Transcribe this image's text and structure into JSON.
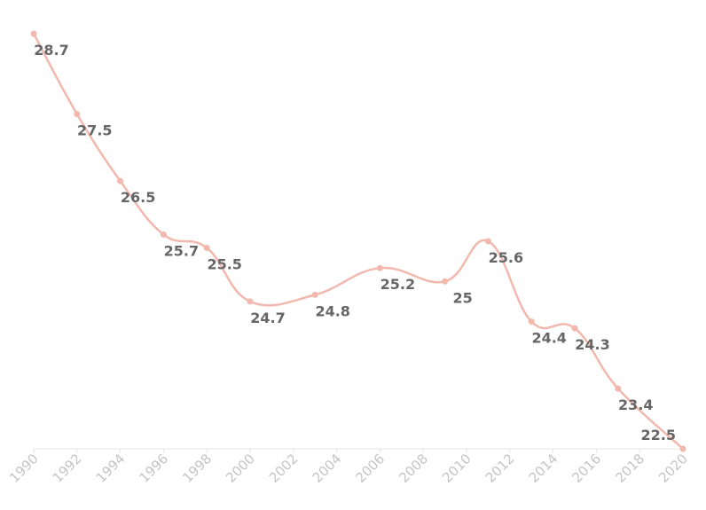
{
  "chart_data": {
    "type": "line",
    "title": "",
    "xlabel": "",
    "ylabel": "",
    "x_ticks": [
      "1990",
      "1992",
      "1994",
      "1996",
      "1998",
      "2000",
      "2002",
      "2004",
      "2006",
      "2008",
      "2010",
      "2012",
      "2014",
      "2016",
      "2018",
      "2020"
    ],
    "xlim": [
      1990,
      2020
    ],
    "ylim": [
      22.5,
      28.7
    ],
    "grid": false,
    "legend": "none",
    "line_color": "#f2b8ae",
    "series": [
      {
        "points": [
          {
            "x": 1990,
            "y": 28.7,
            "label": "28.7"
          },
          {
            "x": 1992,
            "y": 27.5,
            "label": "27.5"
          },
          {
            "x": 1994,
            "y": 26.5,
            "label": "26.5"
          },
          {
            "x": 1996,
            "y": 25.7,
            "label": "25.7"
          },
          {
            "x": 1998,
            "y": 25.5,
            "label": "25.5"
          },
          {
            "x": 2000,
            "y": 24.7,
            "label": "24.7"
          },
          {
            "x": 2003,
            "y": 24.8,
            "label": "24.8"
          },
          {
            "x": 2006,
            "y": 25.2,
            "label": "25.2"
          },
          {
            "x": 2009,
            "y": 25.0,
            "label": "25"
          },
          {
            "x": 2011,
            "y": 25.6,
            "label": "25.6"
          },
          {
            "x": 2013,
            "y": 24.4,
            "label": "24.4"
          },
          {
            "x": 2015,
            "y": 24.3,
            "label": "24.3"
          },
          {
            "x": 2017,
            "y": 23.4,
            "label": "23.4"
          },
          {
            "x": 2020,
            "y": 22.5,
            "label": "22.5"
          }
        ]
      }
    ]
  }
}
